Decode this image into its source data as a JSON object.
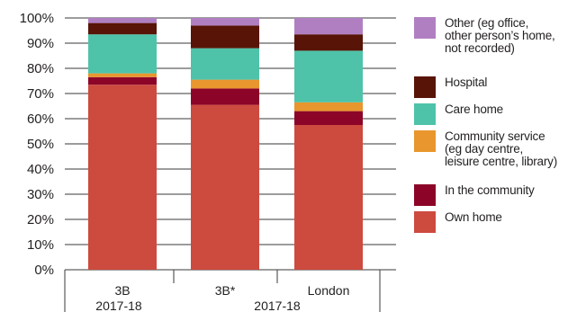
{
  "chart_data": {
    "type": "bar",
    "stacked": true,
    "percent": true,
    "categories": [
      "3B\n2017-18",
      "3B*\n2017-18",
      "London\n2017-18"
    ],
    "x_ticks": [
      "3B",
      "3B*",
      "London"
    ],
    "x_group_labels": [
      "2017-18",
      "2017-18"
    ],
    "y_ticks": [
      "0%",
      "10%",
      "20%",
      "30%",
      "40%",
      "50%",
      "60%",
      "70%",
      "80%",
      "90%",
      "100%"
    ],
    "ylim": [
      0,
      100
    ],
    "grid": true,
    "legend_position": "right",
    "series": [
      {
        "name": "Own home",
        "color": "#cd4a3f",
        "values": [
          73.5,
          65.5,
          57.5
        ]
      },
      {
        "name": "In the community",
        "color": "#8c0528",
        "values": [
          3,
          6.5,
          5.5
        ]
      },
      {
        "name": "Community service (eg day centre, leisure centre, library)",
        "color": "#e8962d",
        "values": [
          1.5,
          3.5,
          3.5
        ]
      },
      {
        "name": "Care home",
        "color": "#4ec3a9",
        "values": [
          15.5,
          12.5,
          20.5
        ]
      },
      {
        "name": "Hospital",
        "color": "#581406",
        "values": [
          4.5,
          9,
          6.5
        ]
      },
      {
        "name": "Other (eg office, other person’s home, not recorded)",
        "color": "#b07fc2",
        "values": [
          2,
          3,
          6.5
        ]
      }
    ]
  },
  "legend": [
    {
      "label": "Other (eg office,\nother person’s home,\nnot recorded)",
      "color": "#b07fc2"
    },
    {
      "label": "Hospital",
      "color": "#581406"
    },
    {
      "label": "Care home",
      "color": "#4ec3a9"
    },
    {
      "label": "Community service\n(eg day centre,\nleisure centre, library)",
      "color": "#e8962d"
    },
    {
      "label": "In the community",
      "color": "#8c0528"
    },
    {
      "label": "Own home",
      "color": "#cd4a3f"
    }
  ]
}
